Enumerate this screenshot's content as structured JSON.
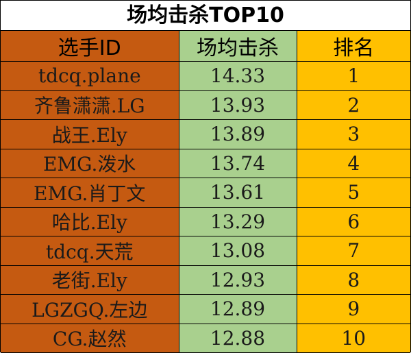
{
  "title": "场均击杀TOP10",
  "headers": {
    "name": "选手ID",
    "kills": "场均击杀",
    "rank": "排名"
  },
  "colors": {
    "name_col": "#c55a11",
    "kills_col": "#a9d08e",
    "rank_col": "#ffc000"
  },
  "rows": [
    {
      "name": "tdcq.plane",
      "kills": "14.33",
      "rank": "1"
    },
    {
      "name": "齐鲁潇潇.LG",
      "kills": "13.93",
      "rank": "2"
    },
    {
      "name": "战王.Ely",
      "kills": "13.89",
      "rank": "3"
    },
    {
      "name": "EMG.泼水",
      "kills": "13.74",
      "rank": "4"
    },
    {
      "name": "EMG.肖丁文",
      "kills": "13.61",
      "rank": "5"
    },
    {
      "name": "哈比.Ely",
      "kills": "13.29",
      "rank": "6"
    },
    {
      "name": "tdcq.天荒",
      "kills": "13.08",
      "rank": "7"
    },
    {
      "name": "老街.Ely",
      "kills": "12.93",
      "rank": "8"
    },
    {
      "name": "LGZGQ.左边",
      "kills": "12.89",
      "rank": "9"
    },
    {
      "name": "CG.赵然",
      "kills": "12.88",
      "rank": "10"
    }
  ]
}
